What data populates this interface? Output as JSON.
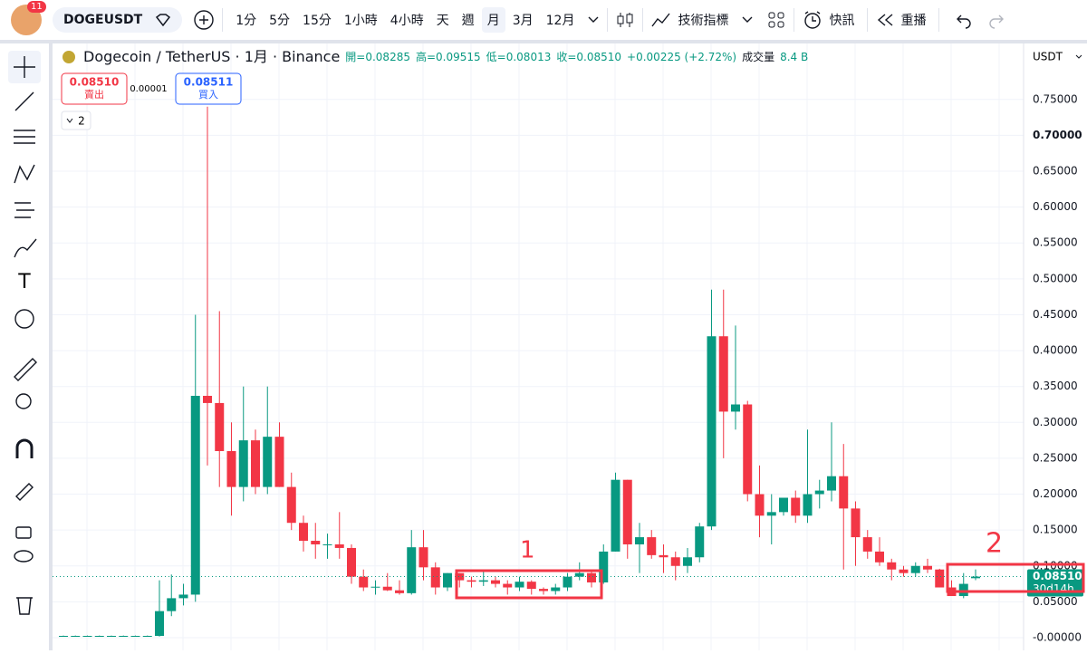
{
  "toolbar": {
    "badge": "11",
    "symbol": "DOGEUSDT",
    "intervals": [
      "1分",
      "5分",
      "15分",
      "1小時",
      "4小時",
      "天",
      "週",
      "月",
      "3月",
      "12月"
    ],
    "indicators": "技術指標",
    "alerts": "快訊",
    "replay": "重播"
  },
  "trade": {
    "sell_price": "0.08510",
    "sell": "賣出",
    "spread": "0.00001",
    "buy_price": "0.08511",
    "buy": "買入",
    "collapse": "2"
  },
  "currency": "USDT",
  "chart_data": {
    "type": "candlestick",
    "title": "Dogecoin / TetherUS · 1月 · Binance",
    "ohlc_legend": [
      "開=0.08285",
      "高=0.09515",
      "低=0.08013",
      "收=0.08510",
      "+0.00225 (+2.72%)",
      "成交量",
      "8.4 B"
    ],
    "categories": [
      null,
      null,
      null,
      null,
      null,
      null,
      null,
      null,
      null,
      null,
      null,
      null,
      null,
      null,
      null,
      null,
      null,
      null,
      null,
      null,
      null,
      null,
      null,
      null,
      null,
      null,
      null,
      null,
      null,
      null,
      null,
      null,
      null,
      null,
      null,
      null,
      null,
      null,
      null,
      null,
      null,
      null,
      null,
      null,
      null,
      null,
      null,
      null,
      null,
      null,
      null,
      null,
      null,
      null,
      null,
      null,
      null,
      null,
      null,
      null,
      null,
      null,
      null,
      null,
      null,
      null,
      null,
      null,
      null,
      null,
      null,
      null,
      null,
      null,
      null,
      null,
      null
    ],
    "open": [
      0.0025,
      0.0025,
      0.0025,
      0.0025,
      0.0025,
      0.0025,
      0.0025,
      0.0025,
      0.0025,
      0.037,
      0.055,
      0.06,
      0.337,
      0.327,
      0.26,
      0.21,
      0.275,
      0.21,
      0.28,
      0.21,
      0.16,
      0.135,
      0.13,
      0.13,
      0.125,
      0.085,
      0.07,
      0.071,
      0.066,
      0.062,
      0.126,
      0.098,
      0.07,
      0.09,
      0.08,
      0.078,
      0.08,
      0.075,
      0.07,
      0.078,
      0.068,
      0.065,
      0.07,
      0.085,
      0.09,
      0.077,
      0.12,
      0.22,
      0.13,
      0.14,
      0.115,
      0.112,
      0.1,
      0.112,
      0.155,
      0.42,
      0.315,
      0.325,
      0.2,
      0.17,
      0.175,
      0.195,
      0.17,
      0.2,
      0.205,
      0.225,
      0.18,
      0.14,
      0.12,
      0.105,
      0.095,
      0.09,
      0.1,
      0.095,
      0.07,
      0.058,
      0.08285
    ],
    "high": [
      0.003,
      0.003,
      0.003,
      0.003,
      0.003,
      0.003,
      0.003,
      0.003,
      0.08,
      0.088,
      0.075,
      0.45,
      0.74,
      0.455,
      0.3,
      0.35,
      0.29,
      0.35,
      0.3,
      0.23,
      0.17,
      0.16,
      0.145,
      0.175,
      0.13,
      0.095,
      0.08,
      0.09,
      0.08,
      0.15,
      0.15,
      0.105,
      0.09,
      0.09,
      0.085,
      0.095,
      0.085,
      0.08,
      0.085,
      0.08,
      0.07,
      0.075,
      0.09,
      0.105,
      0.095,
      0.13,
      0.23,
      0.22,
      0.16,
      0.15,
      0.13,
      0.12,
      0.125,
      0.16,
      0.485,
      0.485,
      0.435,
      0.33,
      0.24,
      0.2,
      0.195,
      0.205,
      0.29,
      0.22,
      0.3,
      0.27,
      0.19,
      0.15,
      0.14,
      0.11,
      0.1,
      0.105,
      0.11,
      0.096,
      0.08,
      0.09,
      0.09515
    ],
    "low": [
      0.002,
      0.002,
      0.002,
      0.002,
      0.002,
      0.002,
      0.002,
      0.002,
      0.0015,
      0.03,
      0.045,
      0.05,
      0.24,
      0.21,
      0.17,
      0.19,
      0.2,
      0.2,
      0.21,
      0.15,
      0.12,
      0.11,
      0.11,
      0.11,
      0.075,
      0.065,
      0.06,
      0.065,
      0.06,
      0.06,
      0.08,
      0.06,
      0.065,
      0.07,
      0.07,
      0.072,
      0.07,
      0.06,
      0.065,
      0.06,
      0.06,
      0.06,
      0.065,
      0.08,
      0.07,
      0.075,
      0.12,
      0.11,
      0.09,
      0.11,
      0.09,
      0.08,
      0.09,
      0.105,
      0.15,
      0.25,
      0.29,
      0.19,
      0.14,
      0.13,
      0.17,
      0.16,
      0.16,
      0.18,
      0.19,
      0.095,
      0.1,
      0.11,
      0.1,
      0.08,
      0.085,
      0.085,
      0.09,
      0.07,
      0.06,
      0.055,
      0.08013
    ],
    "close": [
      0.0025,
      0.0025,
      0.0025,
      0.0025,
      0.0025,
      0.0025,
      0.0025,
      0.0025,
      0.037,
      0.055,
      0.06,
      0.337,
      0.327,
      0.26,
      0.21,
      0.275,
      0.21,
      0.28,
      0.21,
      0.16,
      0.135,
      0.13,
      0.13,
      0.125,
      0.085,
      0.07,
      0.071,
      0.066,
      0.062,
      0.126,
      0.098,
      0.07,
      0.09,
      0.08,
      0.078,
      0.08,
      0.075,
      0.07,
      0.078,
      0.068,
      0.065,
      0.07,
      0.085,
      0.09,
      0.077,
      0.12,
      0.22,
      0.13,
      0.14,
      0.115,
      0.112,
      0.1,
      0.112,
      0.155,
      0.42,
      0.315,
      0.325,
      0.2,
      0.17,
      0.175,
      0.195,
      0.17,
      0.2,
      0.205,
      0.225,
      0.18,
      0.14,
      0.12,
      0.105,
      0.095,
      0.09,
      0.1,
      0.095,
      0.07,
      0.058,
      0.075,
      0.0851
    ],
    "up_color": "#089981",
    "down_color": "#f23645",
    "ylim": [
      -0.0177,
      0.828
    ],
    "yticks": [
      {
        "value": 0,
        "label": "-0.00000"
      },
      {
        "value": 0.05,
        "label": "0.05000"
      },
      {
        "value": 0.1,
        "label": "0.10000"
      },
      {
        "value": 0.15,
        "label": "0.15000"
      },
      {
        "value": 0.2,
        "label": "0.20000"
      },
      {
        "value": 0.25,
        "label": "0.25000"
      },
      {
        "value": 0.3,
        "label": "0.30000"
      },
      {
        "value": 0.35,
        "label": "0.35000"
      },
      {
        "value": 0.4,
        "label": "0.40000"
      },
      {
        "value": 0.45,
        "label": "0.45000"
      },
      {
        "value": 0.5,
        "label": "0.50000"
      },
      {
        "value": 0.55,
        "label": "0.55000"
      },
      {
        "value": 0.6,
        "label": "0.60000"
      },
      {
        "value": 0.65,
        "label": "0.65000"
      },
      {
        "value": 0.7,
        "label": "0.70000"
      },
      {
        "value": 0.75,
        "label": "0.75000"
      }
    ],
    "grid": true,
    "last_price": 0.0851,
    "last_price_label": "0.08510",
    "countdown": "30d14h",
    "annotations": [
      "1",
      "2"
    ]
  }
}
